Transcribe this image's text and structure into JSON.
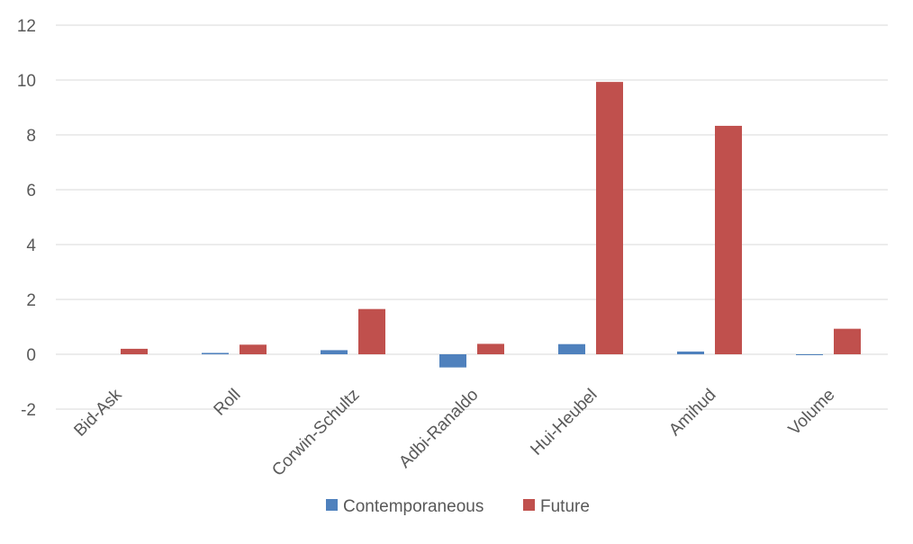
{
  "chart_data": {
    "type": "bar",
    "categories": [
      "Bid-Ask",
      "Roll",
      "Corwin-Schultz",
      "Adbi-Ranaldo",
      "Hui-Heubel",
      "Amihud",
      "Volume"
    ],
    "series": [
      {
        "name": "Contemporaneous",
        "values": [
          0.0,
          0.05,
          0.15,
          -0.48,
          0.37,
          0.1,
          -0.02
        ],
        "color": "#4f81bd"
      },
      {
        "name": "Future",
        "values": [
          0.2,
          0.35,
          1.65,
          0.38,
          9.93,
          8.33,
          0.93
        ],
        "color": "#c0504d"
      }
    ],
    "ylim": [
      -2,
      12
    ],
    "yticks": [
      -2,
      0,
      2,
      4,
      6,
      8,
      10,
      12
    ],
    "grid": true,
    "legend": "bottom",
    "title": "",
    "xlabel": "",
    "ylabel": ""
  }
}
